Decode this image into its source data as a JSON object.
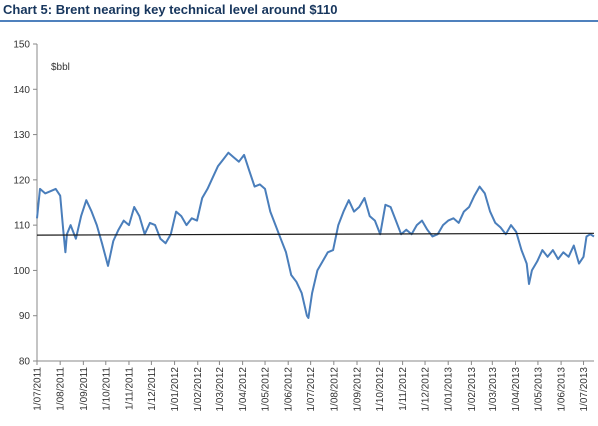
{
  "header": {
    "title": "Chart 5: Brent nearing key technical level around $110"
  },
  "chart_data": {
    "type": "line",
    "title": "Chart 5: Brent nearing key technical level around $110",
    "unit_label": "$bbl",
    "xlabel": "",
    "ylabel": "",
    "ylim": [
      80,
      150
    ],
    "yticks": [
      80,
      90,
      100,
      110,
      120,
      130,
      140,
      150
    ],
    "x_range": [
      "2011-07-01",
      "2013-07-15"
    ],
    "x_tick_labels": [
      "1/07/2011",
      "1/08/2011",
      "1/09/2011",
      "1/10/2011",
      "1/11/2011",
      "1/12/2011",
      "1/01/2012",
      "1/02/2012",
      "1/03/2012",
      "1/04/2012",
      "1/05/2012",
      "1/06/2012",
      "1/07/2012",
      "1/08/2012",
      "1/09/2012",
      "1/10/2012",
      "1/11/2012",
      "1/12/2012",
      "1/01/2013",
      "1/02/2013",
      "1/03/2013",
      "1/04/2013",
      "1/05/2013",
      "1/06/2013",
      "1/07/2013"
    ],
    "x_tick_dates": [
      "2011-07-01",
      "2011-08-01",
      "2011-09-01",
      "2011-10-01",
      "2011-11-01",
      "2011-12-01",
      "2012-01-01",
      "2012-02-01",
      "2012-03-01",
      "2012-04-01",
      "2012-05-01",
      "2012-06-01",
      "2012-07-01",
      "2012-08-01",
      "2012-09-01",
      "2012-10-01",
      "2012-11-01",
      "2012-12-01",
      "2013-01-01",
      "2013-02-01",
      "2013-03-01",
      "2013-04-01",
      "2013-05-01",
      "2013-06-01",
      "2013-07-01"
    ],
    "grid": false,
    "legend": "none",
    "series": [
      {
        "color": "#4a7ebb",
        "points": [
          [
            "2011-07-01",
            111.5
          ],
          [
            "2011-07-05",
            118.0
          ],
          [
            "2011-07-12",
            117.0
          ],
          [
            "2011-07-19",
            117.5
          ],
          [
            "2011-07-26",
            118.0
          ],
          [
            "2011-08-01",
            116.5
          ],
          [
            "2011-08-05",
            109.0
          ],
          [
            "2011-08-08",
            104.0
          ],
          [
            "2011-08-10",
            108.0
          ],
          [
            "2011-08-15",
            110.0
          ],
          [
            "2011-08-22",
            107.0
          ],
          [
            "2011-08-29",
            112.0
          ],
          [
            "2011-09-05",
            115.5
          ],
          [
            "2011-09-12",
            113.0
          ],
          [
            "2011-09-19",
            110.0
          ],
          [
            "2011-09-26",
            106.0
          ],
          [
            "2011-10-04",
            101.0
          ],
          [
            "2011-10-11",
            106.5
          ],
          [
            "2011-10-18",
            109.0
          ],
          [
            "2011-10-25",
            111.0
          ],
          [
            "2011-11-01",
            110.0
          ],
          [
            "2011-11-08",
            114.0
          ],
          [
            "2011-11-15",
            112.0
          ],
          [
            "2011-11-22",
            108.0
          ],
          [
            "2011-11-29",
            110.5
          ],
          [
            "2011-12-06",
            110.0
          ],
          [
            "2011-12-13",
            107.0
          ],
          [
            "2011-12-20",
            106.0
          ],
          [
            "2011-12-27",
            108.0
          ],
          [
            "2012-01-03",
            113.0
          ],
          [
            "2012-01-10",
            112.0
          ],
          [
            "2012-01-17",
            110.0
          ],
          [
            "2012-01-24",
            111.5
          ],
          [
            "2012-01-31",
            111.0
          ],
          [
            "2012-02-07",
            116.0
          ],
          [
            "2012-02-14",
            118.0
          ],
          [
            "2012-02-21",
            120.5
          ],
          [
            "2012-02-28",
            123.0
          ],
          [
            "2012-03-06",
            124.5
          ],
          [
            "2012-03-13",
            126.0
          ],
          [
            "2012-03-20",
            125.0
          ],
          [
            "2012-03-27",
            124.0
          ],
          [
            "2012-04-03",
            125.5
          ],
          [
            "2012-04-10",
            122.0
          ],
          [
            "2012-04-17",
            118.5
          ],
          [
            "2012-04-24",
            119.0
          ],
          [
            "2012-05-01",
            118.0
          ],
          [
            "2012-05-08",
            113.0
          ],
          [
            "2012-05-15",
            110.0
          ],
          [
            "2012-05-22",
            107.0
          ],
          [
            "2012-05-29",
            104.0
          ],
          [
            "2012-06-05",
            99.0
          ],
          [
            "2012-06-12",
            97.5
          ],
          [
            "2012-06-19",
            95.0
          ],
          [
            "2012-06-26",
            90.0
          ],
          [
            "2012-06-28",
            89.5
          ],
          [
            "2012-07-03",
            95.0
          ],
          [
            "2012-07-10",
            100.0
          ],
          [
            "2012-07-17",
            102.0
          ],
          [
            "2012-07-24",
            104.0
          ],
          [
            "2012-07-31",
            104.5
          ],
          [
            "2012-08-07",
            110.0
          ],
          [
            "2012-08-14",
            113.0
          ],
          [
            "2012-08-21",
            115.5
          ],
          [
            "2012-08-28",
            113.0
          ],
          [
            "2012-09-04",
            114.0
          ],
          [
            "2012-09-11",
            116.0
          ],
          [
            "2012-09-18",
            112.0
          ],
          [
            "2012-09-25",
            111.0
          ],
          [
            "2012-10-02",
            108.0
          ],
          [
            "2012-10-09",
            114.5
          ],
          [
            "2012-10-16",
            114.0
          ],
          [
            "2012-10-23",
            111.0
          ],
          [
            "2012-10-30",
            108.0
          ],
          [
            "2012-11-06",
            109.0
          ],
          [
            "2012-11-13",
            108.0
          ],
          [
            "2012-11-20",
            110.0
          ],
          [
            "2012-11-27",
            111.0
          ],
          [
            "2012-12-04",
            109.0
          ],
          [
            "2012-12-11",
            107.5
          ],
          [
            "2012-12-18",
            108.0
          ],
          [
            "2012-12-25",
            110.0
          ],
          [
            "2013-01-01",
            111.0
          ],
          [
            "2013-01-08",
            111.5
          ],
          [
            "2013-01-15",
            110.5
          ],
          [
            "2013-01-22",
            113.0
          ],
          [
            "2013-01-29",
            114.0
          ],
          [
            "2013-02-05",
            116.5
          ],
          [
            "2013-02-12",
            118.5
          ],
          [
            "2013-02-19",
            117.0
          ],
          [
            "2013-02-26",
            113.0
          ],
          [
            "2013-03-05",
            110.5
          ],
          [
            "2013-03-12",
            109.5
          ],
          [
            "2013-03-19",
            108.0
          ],
          [
            "2013-03-26",
            110.0
          ],
          [
            "2013-04-02",
            108.5
          ],
          [
            "2013-04-09",
            104.5
          ],
          [
            "2013-04-16",
            101.5
          ],
          [
            "2013-04-19",
            97.0
          ],
          [
            "2013-04-23",
            100.0
          ],
          [
            "2013-04-30",
            102.0
          ],
          [
            "2013-05-07",
            104.5
          ],
          [
            "2013-05-14",
            103.0
          ],
          [
            "2013-05-21",
            104.5
          ],
          [
            "2013-05-28",
            102.5
          ],
          [
            "2013-06-04",
            104.0
          ],
          [
            "2013-06-11",
            103.0
          ],
          [
            "2013-06-18",
            105.5
          ],
          [
            "2013-06-25",
            101.5
          ],
          [
            "2013-07-01",
            103.0
          ],
          [
            "2013-07-05",
            107.5
          ],
          [
            "2013-07-10",
            108.0
          ],
          [
            "2013-07-15",
            107.5
          ]
        ]
      },
      {
        "color": "#1a1a1a",
        "points": [
          [
            "2011-07-01",
            107.8
          ],
          [
            "2013-07-15",
            108.2
          ]
        ]
      }
    ]
  }
}
